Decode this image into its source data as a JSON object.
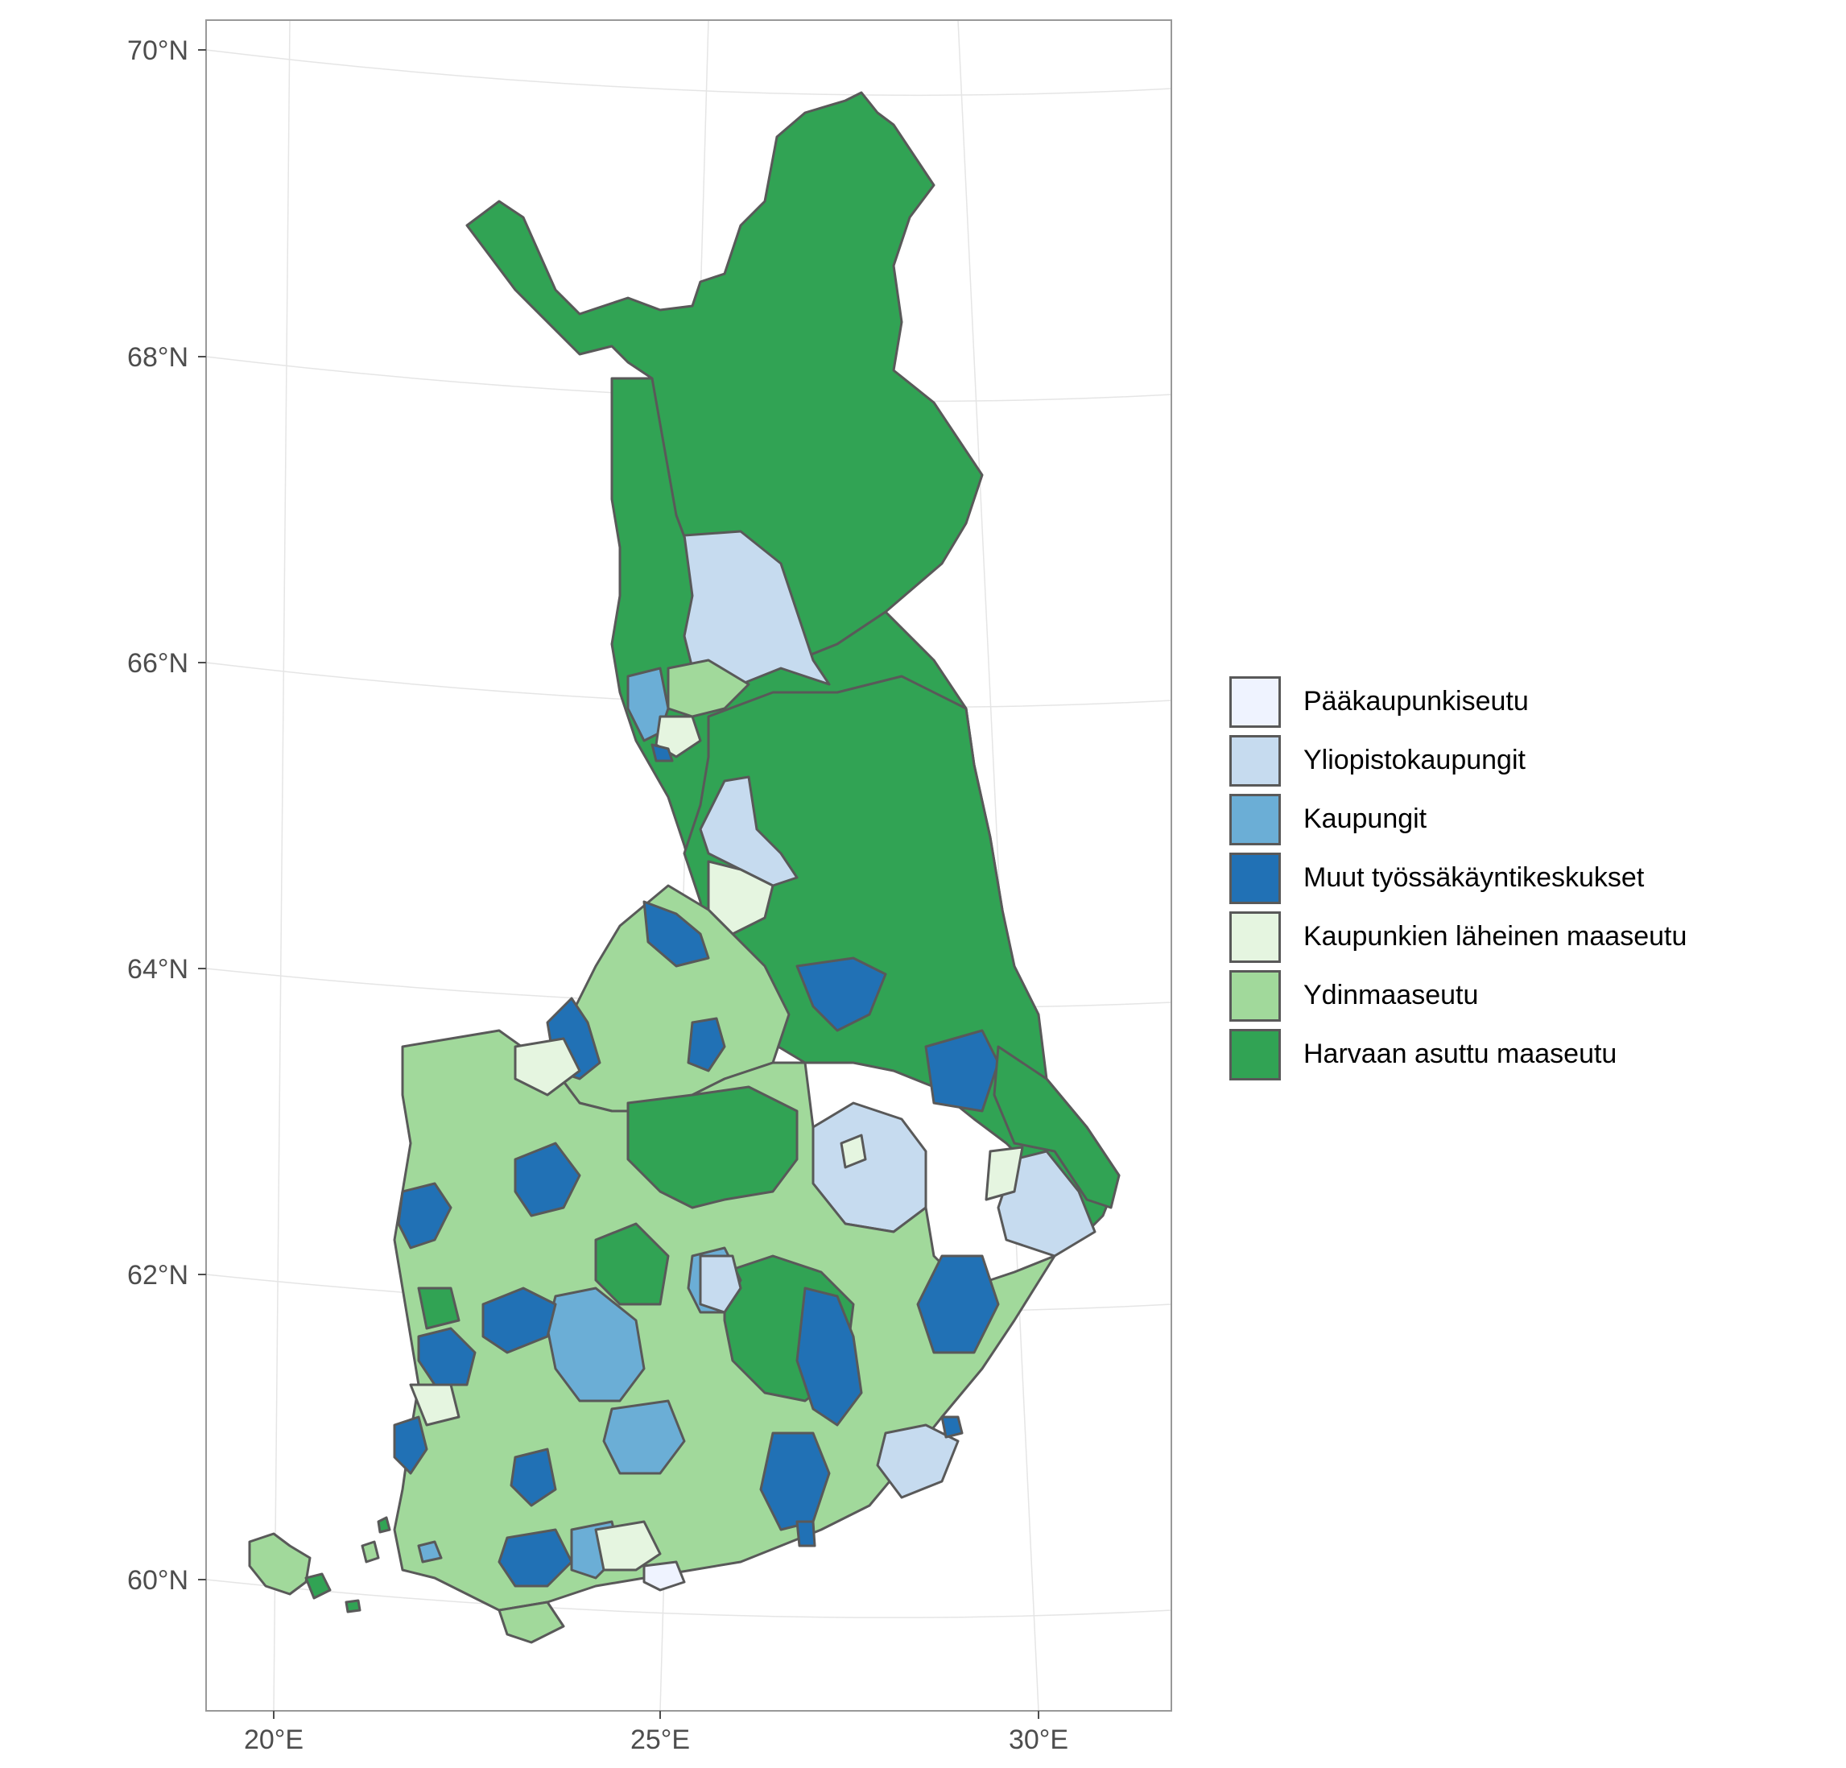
{
  "map": {
    "lat_labels": [
      "70°N",
      "68°N",
      "66°N",
      "64°N",
      "62°N",
      "60°N"
    ],
    "lon_labels": [
      "20°E",
      "25°E",
      "30°E"
    ]
  },
  "legend": {
    "items": [
      {
        "label": "Pääkaupunkiseutu",
        "color": "#eff3ff"
      },
      {
        "label": "Yliopistokaupungit",
        "color": "#c6dbef"
      },
      {
        "label": "Kaupungit",
        "color": "#6baed6"
      },
      {
        "label": "Muut työssäkäyntikeskukset",
        "color": "#2171b5"
      },
      {
        "label": "Kaupunkien läheinen maaseutu",
        "color": "#e5f5e0"
      },
      {
        "label": "Ydinmaaseutu",
        "color": "#a1d99b"
      },
      {
        "label": "Harvaan asuttu maaseutu",
        "color": "#31a354"
      }
    ]
  }
}
